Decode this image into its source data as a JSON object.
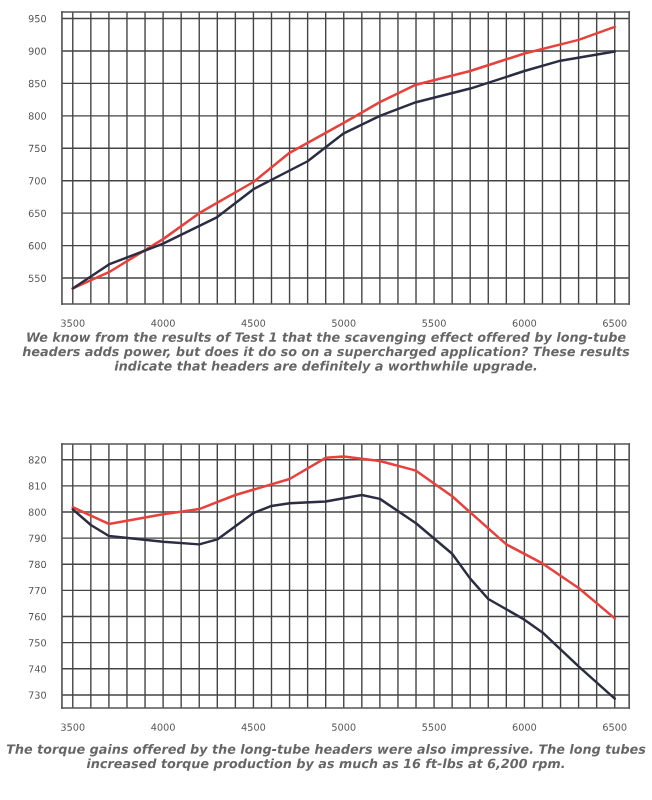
{
  "chart_data": [
    {
      "type": "line",
      "x": [
        3500,
        3700,
        4000,
        4200,
        4500,
        4700,
        5000,
        5200,
        5400,
        5700,
        6000,
        6300,
        6500
      ],
      "series": [
        {
          "color": "#e8413c",
          "values": [
            534,
            559,
            610,
            650,
            698,
            743,
            789,
            821,
            848,
            869,
            896,
            917,
            937
          ]
        },
        {
          "color": "#2b2d42",
          "x": [
            3500,
            3700,
            4000,
            4300,
            4500,
            4800,
            5000,
            5200,
            5400,
            5700,
            6000,
            6200,
            6500
          ],
          "values": [
            534,
            571,
            603,
            644,
            687,
            730,
            773,
            800,
            821,
            842,
            869,
            885,
            899
          ]
        }
      ],
      "xlim": [
        3440,
        6580
      ],
      "ylim": [
        510,
        960
      ],
      "xticks": [
        3500,
        {
          "value": 3600,
          "label": null
        },
        {
          "value": 3700,
          "label": null
        },
        {
          "value": 3800,
          "label": null
        },
        {
          "value": 3900,
          "label": null
        },
        4000,
        {
          "value": 4100,
          "label": null
        },
        {
          "value": 4200,
          "label": null
        },
        {
          "value": 4300,
          "label": null
        },
        {
          "value": 4400,
          "label": null
        },
        4500,
        {
          "value": 4600,
          "label": null
        },
        {
          "value": 4700,
          "label": null
        },
        {
          "value": 4800,
          "label": null
        },
        {
          "value": 4900,
          "label": null
        },
        5000,
        {
          "value": 5100,
          "label": null
        },
        {
          "value": 5200,
          "label": null
        },
        {
          "value": 5300,
          "label": null
        },
        {
          "value": 5400,
          "label": null
        },
        5500,
        {
          "value": 5600,
          "label": null
        },
        {
          "value": 5700,
          "label": null
        },
        {
          "value": 5800,
          "label": null
        },
        {
          "value": 5900,
          "label": null
        },
        6000,
        {
          "value": 6100,
          "label": null
        },
        {
          "value": 6200,
          "label": null
        },
        {
          "value": 6300,
          "label": null
        },
        {
          "value": 6400,
          "label": null
        },
        6500
      ],
      "yticks": [
        550,
        600,
        650,
        700,
        750,
        800,
        850,
        900,
        950
      ],
      "grid": true,
      "legend": false,
      "annotations": [
        "We know from the results of Test 1 that the scavenging effect offered by long-tube headers adds power, but does it do so on a supercharged application? These results indicate that headers are definitely a worthwhile upgrade."
      ]
    },
    {
      "type": "line",
      "x": [
        3500,
        3700,
        4000,
        4200,
        4400,
        4700,
        4900,
        5000,
        5200,
        5400,
        5600,
        5800,
        5900,
        6100,
        6300,
        6500
      ],
      "series": [
        {
          "color": "#e8413c",
          "values": [
            801.8,
            795.4,
            799.1,
            801.1,
            806.5,
            812.6,
            820.7,
            821.2,
            819.5,
            815.8,
            806,
            793.7,
            787.6,
            780.3,
            770.9,
            759.3
          ]
        },
        {
          "color": "#2b2d42",
          "x": [
            3500,
            3600,
            3700,
            4000,
            4200,
            4300,
            4500,
            4600,
            4700,
            4900,
            5100,
            5200,
            5400,
            5600,
            5700,
            5800,
            6000,
            6100,
            6300,
            6500
          ],
          "values": [
            801,
            795,
            790.8,
            788.6,
            787.6,
            789.5,
            799.6,
            802.3,
            803.3,
            804,
            806.5,
            805,
            795.7,
            784,
            774.5,
            766.7,
            758.8,
            753.9,
            740.9,
            728.6
          ]
        }
      ],
      "xlim": [
        3440,
        6580
      ],
      "ylim": [
        725,
        826
      ],
      "xticks": [
        3500,
        {
          "value": 3600,
          "label": null
        },
        {
          "value": 3700,
          "label": null
        },
        {
          "value": 3800,
          "label": null
        },
        {
          "value": 3900,
          "label": null
        },
        4000,
        {
          "value": 4100,
          "label": null
        },
        {
          "value": 4200,
          "label": null
        },
        {
          "value": 4300,
          "label": null
        },
        {
          "value": 4400,
          "label": null
        },
        4500,
        {
          "value": 4600,
          "label": null
        },
        {
          "value": 4700,
          "label": null
        },
        {
          "value": 4800,
          "label": null
        },
        {
          "value": 4900,
          "label": null
        },
        5000,
        {
          "value": 5100,
          "label": null
        },
        {
          "value": 5200,
          "label": null
        },
        {
          "value": 5300,
          "label": null
        },
        {
          "value": 5400,
          "label": null
        },
        5500,
        {
          "value": 5600,
          "label": null
        },
        {
          "value": 5700,
          "label": null
        },
        {
          "value": 5800,
          "label": null
        },
        {
          "value": 5900,
          "label": null
        },
        6000,
        {
          "value": 6100,
          "label": null
        },
        {
          "value": 6200,
          "label": null
        },
        {
          "value": 6300,
          "label": null
        },
        {
          "value": 6400,
          "label": null
        },
        6500
      ],
      "yticks": [
        730,
        740,
        750,
        760,
        770,
        780,
        790,
        800,
        810,
        820
      ],
      "grid": true,
      "legend": false,
      "annotations": [
        "The torque gains offered by the long-tube headers were also impressive. The long tubes increased torque production by as much as 16 ft-lbs at 6,200 rpm."
      ]
    }
  ]
}
